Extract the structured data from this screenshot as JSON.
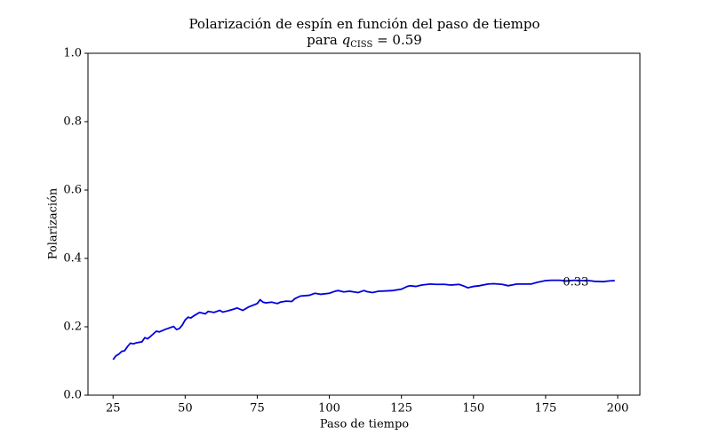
{
  "chart_data": {
    "type": "line",
    "title": "Polarización de espín en función del paso de tiempo",
    "subtitle": {
      "prefix": "para ",
      "symbol": "q",
      "subscript": "CISS",
      "suffix": " = 0.59"
    },
    "x_label": "Paso de tiempo",
    "y_label": "Polarización",
    "x": [
      25,
      26,
      27,
      28,
      29,
      30,
      31,
      32,
      33,
      35,
      36,
      37,
      38,
      40,
      41,
      43,
      45,
      46,
      47,
      48,
      49,
      50,
      51,
      52,
      53,
      55,
      57,
      58,
      60,
      62,
      63,
      65,
      67,
      68,
      70,
      72,
      75,
      76,
      77,
      78,
      80,
      82,
      83,
      85,
      87,
      88,
      90,
      93,
      95,
      97,
      100,
      102,
      103,
      105,
      107,
      110,
      112,
      113,
      115,
      117,
      120,
      122,
      125,
      127,
      128,
      130,
      132,
      135,
      137,
      140,
      142,
      145,
      147,
      148,
      150,
      152,
      155,
      157,
      160,
      162,
      165,
      167,
      170,
      172,
      175,
      177,
      180,
      182,
      185,
      187,
      190,
      192,
      195,
      197,
      199
    ],
    "series": [
      {
        "name": "Polarización",
        "color": "#0000dd",
        "values": [
          0.104,
          0.115,
          0.12,
          0.128,
          0.13,
          0.142,
          0.152,
          0.15,
          0.153,
          0.156,
          0.168,
          0.165,
          0.172,
          0.187,
          0.185,
          0.192,
          0.198,
          0.201,
          0.192,
          0.195,
          0.205,
          0.22,
          0.228,
          0.226,
          0.232,
          0.242,
          0.238,
          0.245,
          0.242,
          0.248,
          0.243,
          0.247,
          0.252,
          0.255,
          0.248,
          0.258,
          0.268,
          0.279,
          0.272,
          0.27,
          0.272,
          0.268,
          0.272,
          0.275,
          0.274,
          0.282,
          0.29,
          0.292,
          0.298,
          0.295,
          0.298,
          0.304,
          0.306,
          0.302,
          0.304,
          0.3,
          0.306,
          0.303,
          0.3,
          0.304,
          0.305,
          0.306,
          0.31,
          0.318,
          0.32,
          0.318,
          0.322,
          0.325,
          0.324,
          0.324,
          0.322,
          0.324,
          0.318,
          0.314,
          0.318,
          0.32,
          0.325,
          0.326,
          0.324,
          0.32,
          0.325,
          0.325,
          0.325,
          0.33,
          0.335,
          0.336,
          0.336,
          0.334,
          0.336,
          0.335,
          0.335,
          0.333,
          0.332,
          0.334,
          0.335
        ]
      }
    ],
    "annotation": {
      "text": "0.33",
      "x": 181,
      "y": 0.33
    },
    "xlim": [
      16.3,
      207.7
    ],
    "ylim": [
      0,
      1
    ],
    "xticks": [
      25,
      50,
      75,
      100,
      125,
      150,
      175,
      200
    ],
    "yticks": [
      {
        "value": 0,
        "label": "0.0"
      },
      {
        "value": 0.2,
        "label": "0.2"
      },
      {
        "value": 0.4,
        "label": "0.4"
      },
      {
        "value": 0.6,
        "label": "0.6"
      },
      {
        "value": 0.8,
        "label": "0.8"
      },
      {
        "value": 1,
        "label": "1.0"
      }
    ],
    "grid": false
  }
}
